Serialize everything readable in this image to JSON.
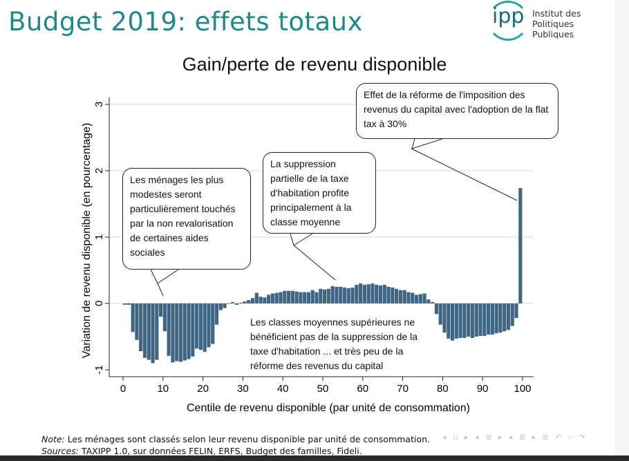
{
  "slide": {
    "title": "Budget 2019: effets totaux",
    "logo": {
      "mark": "ipp",
      "line1": "Institut des",
      "line2": "Politiques Publiques"
    },
    "note_label": "Note:",
    "note_text": " Les ménages sont classés selon leur revenu disponible par unité de consommation.",
    "sources_label": "Sources:",
    "sources_text": " TAXIPP 1.0, sur données FELIN, ERFS, Budget des familles, Fideli.",
    "nav_icons": "◂ ▫ ▸ ◂ ≣ ▸ ◂ ≣ ▸  ≣  ↶ ⌕ ↷"
  },
  "annotations": {
    "top_right": "Effet de la réforme de l'imposition des revenus du capital avec l'adoption de la flat tax à 30%",
    "middle": "La suppression partielle de la taxe d'habitation profite principalement à la classe moyenne",
    "left": "Les ménages les plus modestes seront particulièrement touchés par la non revalorisation de certaines aides sociales",
    "bottom": "Les classes moyennes supérieures ne bénéficient pas de la suppression de la taxe d'habitation ... et très peu de la réforme des revenus du capital"
  },
  "chart_data": {
    "type": "bar",
    "title": "Gain/perte de revenu disponible",
    "xlabel": "Centile de revenu disponible (par unité de consommation)",
    "ylabel": "Variation de revenu disponible (en pourcentage)",
    "xlim": [
      0,
      100
    ],
    "ylim": [
      -1,
      3
    ],
    "xticks": [
      "0",
      "10",
      "20",
      "30",
      "40",
      "50",
      "60",
      "70",
      "80",
      "90",
      "100"
    ],
    "yticks": [
      "-1",
      "0",
      "1",
      "2",
      "3"
    ],
    "grid": true,
    "bar_color": "#3f6685",
    "x": [
      1,
      2,
      3,
      4,
      5,
      6,
      7,
      8,
      9,
      10,
      11,
      12,
      13,
      14,
      15,
      16,
      17,
      18,
      19,
      20,
      21,
      22,
      23,
      24,
      25,
      26,
      27,
      28,
      29,
      30,
      31,
      32,
      33,
      34,
      35,
      36,
      37,
      38,
      39,
      40,
      41,
      42,
      43,
      44,
      45,
      46,
      47,
      48,
      49,
      50,
      51,
      52,
      53,
      54,
      55,
      56,
      57,
      58,
      59,
      60,
      61,
      62,
      63,
      64,
      65,
      66,
      67,
      68,
      69,
      70,
      71,
      72,
      73,
      74,
      75,
      76,
      77,
      78,
      79,
      80,
      81,
      82,
      83,
      84,
      85,
      86,
      87,
      88,
      89,
      90,
      91,
      92,
      93,
      94,
      95,
      96,
      97,
      98,
      99,
      100
    ],
    "values": [
      -0.02,
      -0.02,
      -0.43,
      -0.55,
      -0.72,
      -0.82,
      -0.85,
      -0.9,
      -0.85,
      -0.2,
      -0.42,
      -0.79,
      -0.89,
      -0.87,
      -0.88,
      -0.86,
      -0.84,
      -0.8,
      -0.68,
      -0.7,
      -0.73,
      -0.66,
      -0.61,
      -0.32,
      -0.1,
      -0.07,
      0.0,
      0.02,
      -0.02,
      0.01,
      0.03,
      0.05,
      0.08,
      0.16,
      0.1,
      0.09,
      0.13,
      0.15,
      0.16,
      0.17,
      0.19,
      0.19,
      0.19,
      0.18,
      0.17,
      0.17,
      0.17,
      0.2,
      0.17,
      0.22,
      0.21,
      0.22,
      0.26,
      0.25,
      0.25,
      0.24,
      0.23,
      0.24,
      0.28,
      0.3,
      0.28,
      0.29,
      0.3,
      0.28,
      0.27,
      0.28,
      0.25,
      0.24,
      0.22,
      0.2,
      0.2,
      0.17,
      0.16,
      0.13,
      0.14,
      0.15,
      0.06,
      0.02,
      -0.16,
      -0.32,
      -0.44,
      -0.53,
      -0.56,
      -0.53,
      -0.52,
      -0.52,
      -0.5,
      -0.52,
      -0.5,
      -0.49,
      -0.49,
      -0.47,
      -0.47,
      -0.45,
      -0.44,
      -0.42,
      -0.4,
      -0.34,
      -0.22,
      1.74
    ]
  }
}
